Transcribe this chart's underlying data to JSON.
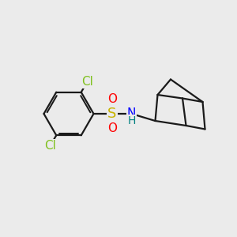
{
  "bg_color": "#ebebeb",
  "atom_colors": {
    "Cl": "#7fc01e",
    "S": "#c8b400",
    "O": "#ff0000",
    "N": "#0000ff",
    "H": "#008080"
  },
  "bond_color": "#1a1a1a",
  "bond_width": 1.6,
  "font_size_atom": 11,
  "font_size_H": 10
}
